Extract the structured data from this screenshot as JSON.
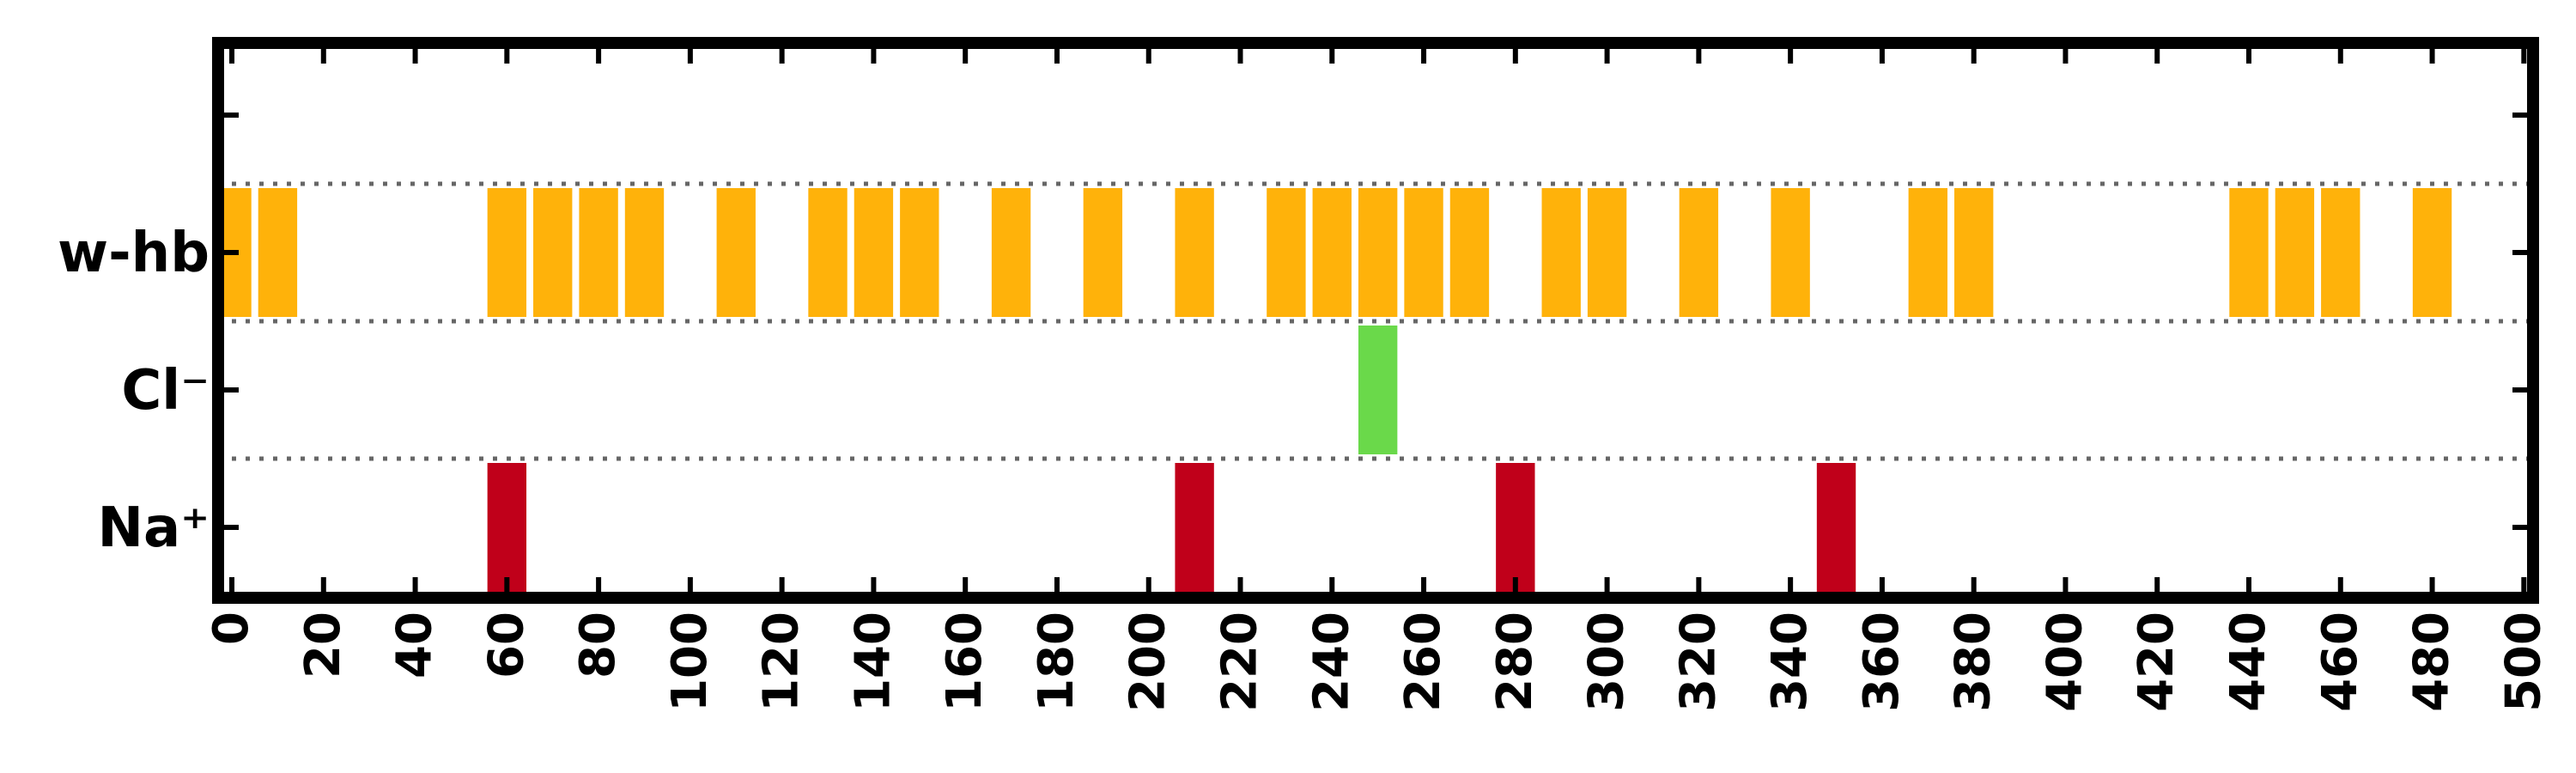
{
  "chart_data": {
    "type": "bar",
    "xlim": [
      -3,
      502
    ],
    "x_ticks": [
      "0",
      "20",
      "40",
      "60",
      "80",
      "100",
      "120",
      "140",
      "160",
      "180",
      "200",
      "220",
      "240",
      "260",
      "280",
      "300",
      "320",
      "340",
      "360",
      "380",
      "400",
      "420",
      "440",
      "460",
      "480",
      "500"
    ],
    "x_tick_values": [
      0,
      20,
      40,
      60,
      80,
      100,
      120,
      140,
      160,
      180,
      200,
      220,
      240,
      260,
      280,
      300,
      320,
      340,
      360,
      380,
      400,
      420,
      440,
      460,
      480,
      500
    ],
    "bar_width": 8.5,
    "grid": "dotted row separators",
    "legend": "none",
    "series": [
      {
        "label": "w-hb",
        "color": "#FFB20A",
        "x": [
          0,
          10,
          60,
          70,
          80,
          90,
          110,
          130,
          140,
          150,
          170,
          190,
          210,
          230,
          240,
          250,
          260,
          270,
          290,
          300,
          320,
          340,
          370,
          380,
          440,
          450,
          460,
          480
        ]
      },
      {
        "label": "Cl⁻",
        "color": "#6AD94A",
        "x": [
          250
        ]
      },
      {
        "label": "Na⁺",
        "color": "#C0001A",
        "x": [
          60,
          210,
          280,
          350
        ]
      }
    ]
  }
}
